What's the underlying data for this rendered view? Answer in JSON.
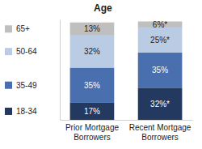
{
  "chart_data": {
    "type": "bar",
    "title": "Age",
    "stacked": true,
    "data_labels": true,
    "tick_labels": "x",
    "legend": "left",
    "categories": [
      "Prior Mortgage Borrowers",
      "Recent Mortgage Borrowers"
    ],
    "ylim": [
      0,
      100
    ],
    "series": [
      {
        "name": "18-34",
        "color": "#23395f",
        "values": [
          17,
          32
        ],
        "value_labels": [
          "17%",
          "32%*"
        ]
      },
      {
        "name": "35-49",
        "color": "#4a6fae",
        "values": [
          35,
          35
        ],
        "value_labels": [
          "35%",
          "35%"
        ]
      },
      {
        "name": "50-64",
        "color": "#b9cce4",
        "values": [
          32,
          25
        ],
        "value_labels": [
          "32%",
          "25%*"
        ]
      },
      {
        "name": "65+",
        "color": "#bfbfbf",
        "values": [
          13,
          6
        ],
        "value_labels": [
          "13%",
          "6%*"
        ]
      }
    ]
  }
}
